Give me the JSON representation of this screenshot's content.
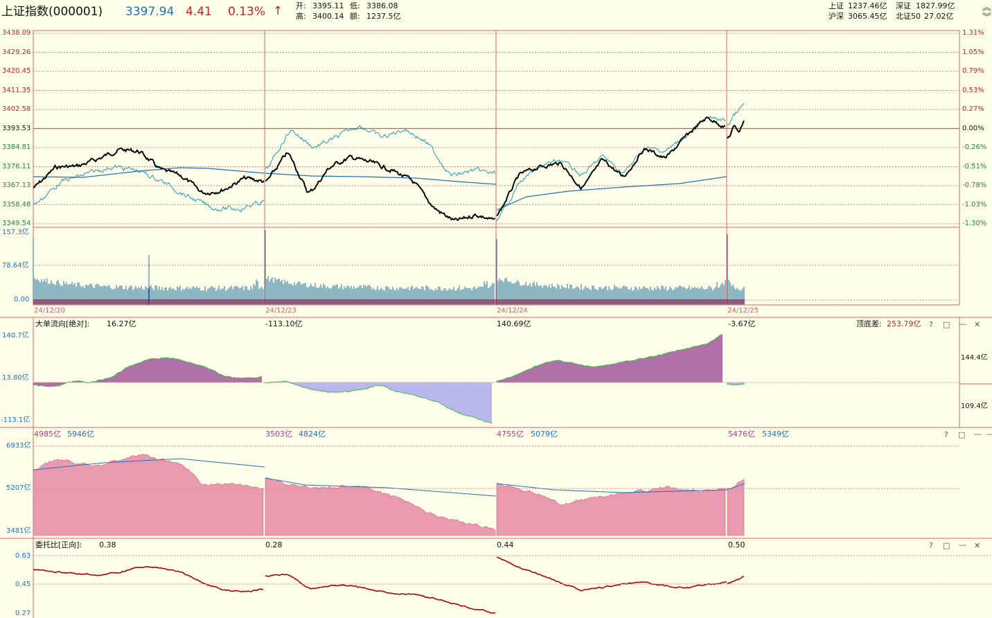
{
  "header": {
    "title": "上证指数(000001)",
    "price": "3397.94",
    "change": "4.41",
    "change_pct": "0.13%",
    "arrow": "↑",
    "open_label": "开:",
    "open": "3395.11",
    "low_label": "低:",
    "low": "3386.08",
    "high_label": "高:",
    "high": "3400.14",
    "amount_label": "额:",
    "amount": "1237.5亿",
    "market": {
      "sh_label": "上证",
      "sh": "1237.46亿",
      "sz_label": "深证",
      "sz": "1827.99亿",
      "hs_label": "沪深",
      "hs": "3065.45亿",
      "bz_label": "北证50",
      "bz": "27.02亿"
    }
  },
  "colors": {
    "background": "#FFFFEA",
    "grid": "#E88080",
    "index_line": "#000000",
    "cyan_line": "#1E9BB4",
    "avg_line": "#1F6FBF",
    "up_red": "#D02020",
    "blue_text": "#1E6FD0",
    "inflow_fill": "#B070A8",
    "outflow_fill": "#B8B8EC",
    "pink_fill": "#E89AAF",
    "dark_red": "#B00000"
  },
  "price_chart": {
    "y_left_ticks": [
      "3438.09",
      "3429.26",
      "3420.45",
      "3411.35",
      "3402.58",
      "3393.53",
      "3384.81",
      "3376.11",
      "3367.13",
      "3358.48",
      "3349.54"
    ],
    "y_right_ticks": [
      "1.31%",
      "1.05%",
      "0.79%",
      "0.53%",
      "0.27%",
      "0.00%",
      "-0.26%",
      "-0.51%",
      "-0.78%",
      "-1.03%",
      "-1.30%"
    ],
    "volume_ticks": [
      "157.3亿",
      "78.64亿",
      "0.00"
    ],
    "dates": [
      "24/12/20",
      "24/12/23",
      "24/12/24",
      "24/12/25"
    ]
  },
  "big_order": {
    "title": "大单流向[绝对]:",
    "day_values": [
      "16.27亿",
      "-113.10亿",
      "140.69亿",
      "-3.67亿"
    ],
    "y_ticks": [
      "140.7亿",
      "13.80亿",
      "-113.1亿"
    ],
    "right_label": "顶底差:",
    "right_value": "253.79亿",
    "right_ticks": [
      "144.4亿",
      "109.4亿"
    ]
  },
  "buy_sell": {
    "pairs": [
      {
        "a": "4985亿",
        "b": "5946亿"
      },
      {
        "a": "3503亿",
        "b": "4824亿"
      },
      {
        "a": "4755亿",
        "b": "5079亿"
      },
      {
        "a": "5476亿",
        "b": "5349亿"
      }
    ],
    "y_ticks": [
      "6933亿",
      "5207亿",
      "3481亿"
    ]
  },
  "commission": {
    "title": "委托比[正向]:",
    "day_values": [
      "0.38",
      "0.28",
      "0.44",
      "0.50"
    ],
    "y_ticks": [
      "0.63",
      "0.45",
      "0.27"
    ]
  },
  "icons": {
    "help": "?",
    "restore": "□",
    "minimize": "—",
    "close": "✕",
    "scroll_up": "︽",
    "scroll_down": "︾"
  }
}
